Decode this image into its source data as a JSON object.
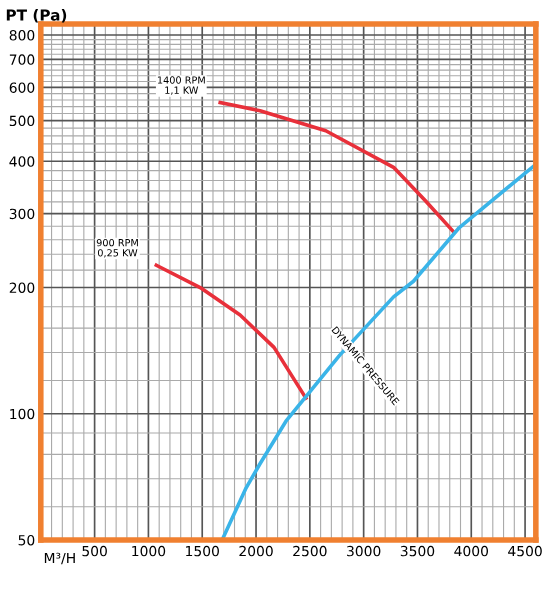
{
  "chart_data": {
    "type": "line",
    "ylabel": "PT (Pa)",
    "xlabel": "M³/H",
    "log": "y",
    "grid": true,
    "legend": false,
    "marker": "none",
    "line_style": "solid",
    "xlim": [
      0,
      4600
    ],
    "xticks": [
      500,
      1000,
      1500,
      2000,
      2500,
      3000,
      3500,
      4000,
      4500
    ],
    "ylim": [
      50,
      850
    ],
    "yticks": [
      50,
      100,
      200,
      300,
      400,
      500,
      600,
      700,
      800
    ],
    "series": [
      {
        "color": "#e8303a",
        "x": [
          1667,
          2037,
          2648,
          3278,
          3574,
          3833
        ],
        "values": [
          552,
          528,
          473,
          387,
          322,
          272
        ]
      },
      {
        "color": "#e8303a",
        "x": [
          1074,
          1481,
          1852,
          2167,
          2463
        ],
        "values": [
          226,
          200,
          172,
          144,
          109
        ]
      },
      {
        "color": "#3ab4e8",
        "x": [
          1685,
          1907,
          2037,
          2278,
          2778,
          3278,
          3463,
          3889,
          4593
        ],
        "values": [
          50,
          66.5,
          76,
          96,
          138,
          190,
          207,
          278,
          392
        ]
      }
    ],
    "annotations": [
      "1400 RPM\n1,1 KW",
      "900 RPM\n0,25 KW",
      "DYNAMIC PRESSURE"
    ]
  }
}
